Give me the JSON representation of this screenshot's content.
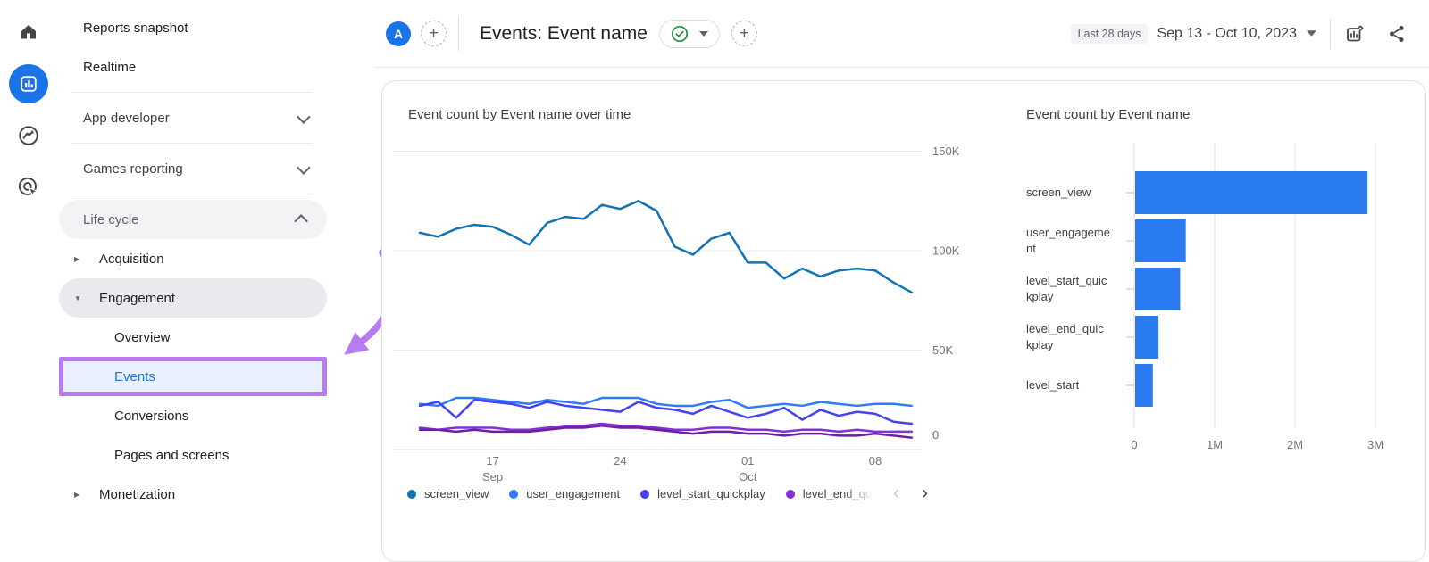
{
  "colors": {
    "accent": "#1a73e8",
    "annotation_purple": "#b77cf0",
    "active_nav_bg": "#e8f1fd",
    "pill_gray": "#e9eaed",
    "grid_line": "#e8e8e8",
    "axis_text": "#757575"
  },
  "rail": {
    "items": [
      {
        "icon": "home-icon",
        "active": false
      },
      {
        "icon": "reports-icon",
        "active": true
      },
      {
        "icon": "explore-icon",
        "active": false
      },
      {
        "icon": "advertising-icon",
        "active": false
      }
    ]
  },
  "sidebar": {
    "items": [
      {
        "type": "link",
        "label": "Reports snapshot"
      },
      {
        "type": "link",
        "label": "Realtime"
      },
      {
        "type": "divider"
      },
      {
        "type": "collapse",
        "label": "App developer",
        "expanded": false
      },
      {
        "type": "divider"
      },
      {
        "type": "collapse",
        "label": "Games reporting",
        "expanded": false
      },
      {
        "type": "divider"
      },
      {
        "type": "section",
        "label": "Life cycle",
        "expanded": true
      },
      {
        "type": "group",
        "label": "Acquisition",
        "expanded": false
      },
      {
        "type": "group",
        "label": "Engagement",
        "expanded": true,
        "highlighted": true
      },
      {
        "type": "sub",
        "label": "Overview"
      },
      {
        "type": "sub",
        "label": "Events",
        "active": true,
        "annotated": true
      },
      {
        "type": "sub",
        "label": "Conversions"
      },
      {
        "type": "sub",
        "label": "Pages and screens"
      },
      {
        "type": "group",
        "label": "Monetization",
        "expanded": false
      }
    ]
  },
  "header": {
    "avatar_letter": "A",
    "title": "Events: Event name",
    "status_icon": "checkmark-badge-icon",
    "date_range_label": "Last 28 days",
    "date_range": "Sep 13 - Oct 10, 2023"
  },
  "icons": {
    "home-icon": "house shape",
    "reports-icon": "bar-chart in rounded square",
    "explore-icon": "circle with zigzag trend arrow",
    "advertising-icon": "circle target with cursor arrow",
    "add-comparison-icon": "plus in dashed circle",
    "checkmark-badge-icon": "green circled check",
    "caret-down-icon": "small down triangle",
    "customize-report-icon": "chart square with pencil",
    "share-icon": "three connected dots",
    "chevron-left-icon": "‹",
    "chevron-right-icon": "›"
  },
  "chart_data": [
    {
      "type": "line",
      "title": "Event count by Event name over time",
      "x_start": "Sep 13, 2023",
      "x_end": "Oct 10, 2023",
      "n_points": 28,
      "unit": "event count, values in thousands (estimated from gridlines)",
      "ylim_k": [
        0,
        160
      ],
      "grid": "horizontal",
      "legend_position": "bottom",
      "y_ticks": [
        {
          "label": "150K",
          "value_k": 150
        },
        {
          "label": "100K",
          "value_k": 100
        },
        {
          "label": "50K",
          "value_k": 50
        },
        {
          "label": "0",
          "value_k": 0
        }
      ],
      "x_ticks": [
        {
          "label": "17",
          "sub": "Sep",
          "index": 4
        },
        {
          "label": "24",
          "sub": "",
          "index": 11
        },
        {
          "label": "01",
          "sub": "Oct",
          "index": 18
        },
        {
          "label": "08",
          "sub": "",
          "index": 25
        }
      ],
      "series": [
        {
          "name": "screen_view",
          "color": "#1273b0",
          "values_k": [
            109,
            107,
            111,
            113,
            112,
            108,
            103,
            114,
            117,
            116,
            123,
            121,
            125,
            120,
            102,
            98,
            106,
            109,
            94,
            94,
            86,
            91,
            87,
            90,
            91,
            90,
            84,
            79
          ]
        },
        {
          "name": "user_engagement",
          "color": "#2e7df6",
          "values_k": [
            23,
            22,
            26,
            26,
            25,
            24,
            23,
            25,
            24,
            23,
            26,
            26,
            26,
            23,
            22,
            22,
            24,
            25,
            21,
            22,
            23,
            22,
            24,
            23,
            22,
            23,
            23,
            22
          ]
        },
        {
          "name": "level_start_quickplay",
          "color": "#4642f0",
          "values_k": [
            22,
            24,
            16,
            25,
            24,
            23,
            21,
            24,
            22,
            21,
            20,
            19,
            24,
            21,
            20,
            18,
            22,
            19,
            16,
            18,
            21,
            15,
            20,
            17,
            19,
            18,
            14,
            13
          ]
        },
        {
          "name": "level_end_quickplay",
          "color": "#8430d8",
          "values_k": [
            11,
            10,
            11,
            11,
            11,
            10,
            10,
            11,
            12,
            12,
            13,
            12,
            12,
            11,
            10,
            10,
            11,
            11,
            10,
            10,
            9,
            10,
            10,
            9,
            10,
            9,
            9,
            9
          ]
        },
        {
          "name": "level_start",
          "color": "#6d1f9e",
          "values_k": [
            10,
            10,
            9,
            10,
            9,
            9,
            9,
            10,
            11,
            11,
            12,
            11,
            11,
            10,
            9,
            8,
            9,
            9,
            8,
            8,
            7,
            8,
            8,
            7,
            7,
            8,
            7,
            6
          ]
        }
      ],
      "legend": {
        "visible": [
          "screen_view",
          "user_engagement",
          "level_start_quickplay",
          "level_end_qui"
        ],
        "truncated_last": true,
        "pager": {
          "prev_enabled": false,
          "next_enabled": true
        }
      }
    },
    {
      "type": "bar",
      "orientation": "horizontal",
      "title": "Event count by Event name",
      "categories": [
        "screen_view",
        "user_engagement",
        "level_start_quickplay",
        "level_end_quickplay",
        "level_start"
      ],
      "categories_display": [
        [
          "screen_view"
        ],
        [
          "user_engageme",
          "nt"
        ],
        [
          "level_start_quic",
          "kplay"
        ],
        [
          "level_end_quic",
          "kplay"
        ],
        [
          "level_start"
        ]
      ],
      "values": [
        2890000,
        630000,
        560000,
        290000,
        220000
      ],
      "x_ticks": [
        "0",
        "1M",
        "2M",
        "3M"
      ],
      "xlim": [
        0,
        3300000
      ],
      "grid": "vertical",
      "bar_color": "#2b7bf0"
    }
  ]
}
